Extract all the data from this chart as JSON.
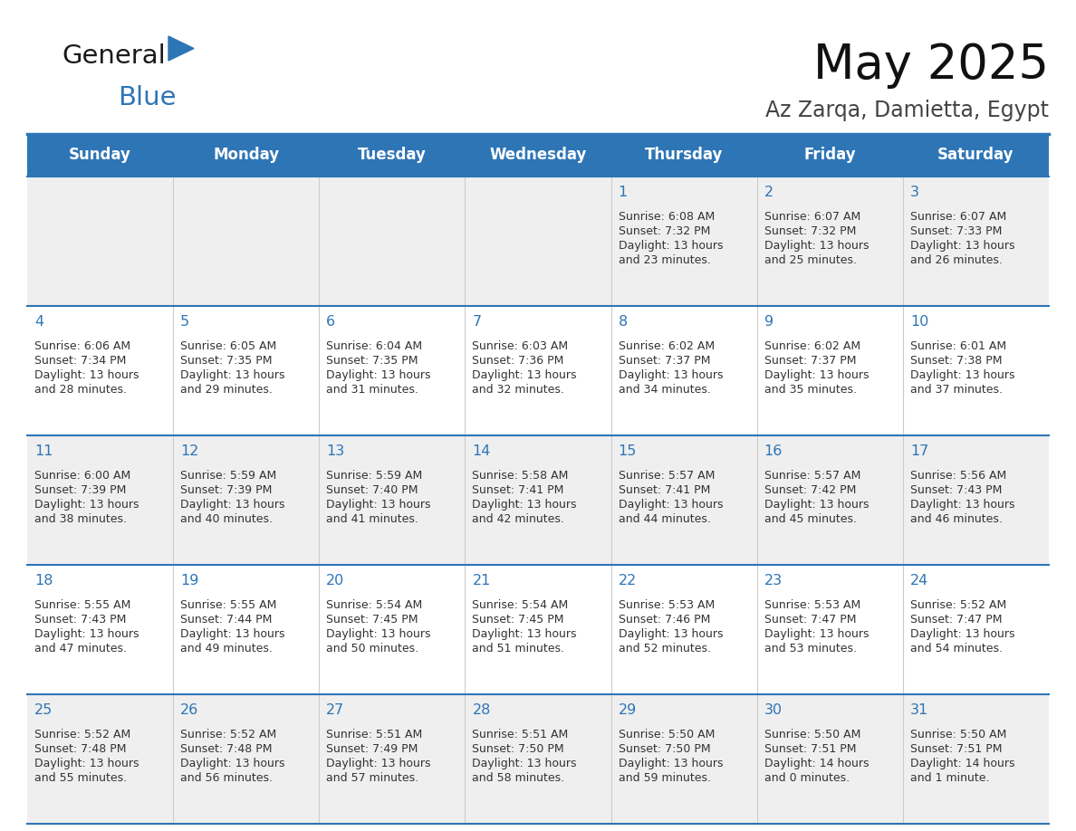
{
  "title": "May 2025",
  "subtitle": "Az Zarqa, Damietta, Egypt",
  "header_bg": "#2E75B6",
  "header_text_color": "#FFFFFF",
  "day_names": [
    "Sunday",
    "Monday",
    "Tuesday",
    "Wednesday",
    "Thursday",
    "Friday",
    "Saturday"
  ],
  "row_bg_even": "#EFEFEF",
  "row_bg_odd": "#FFFFFF",
  "cell_border_color": "#2E75B6",
  "text_color": "#333333",
  "number_color": "#2E75B6",
  "title_color": "#111111",
  "subtitle_color": "#444444",
  "logo_text1_color": "#1A1A1A",
  "logo_text2_color": "#2E75B6",
  "logo_triangle_color": "#2E75B6",
  "calendar_data": [
    [
      {
        "day": 0,
        "sunrise": "",
        "sunset": "",
        "daylight": ""
      },
      {
        "day": 0,
        "sunrise": "",
        "sunset": "",
        "daylight": ""
      },
      {
        "day": 0,
        "sunrise": "",
        "sunset": "",
        "daylight": ""
      },
      {
        "day": 0,
        "sunrise": "",
        "sunset": "",
        "daylight": ""
      },
      {
        "day": 1,
        "sunrise": "6:08 AM",
        "sunset": "7:32 PM",
        "daylight": "13 hours",
        "daylight2": "and 23 minutes."
      },
      {
        "day": 2,
        "sunrise": "6:07 AM",
        "sunset": "7:32 PM",
        "daylight": "13 hours",
        "daylight2": "and 25 minutes."
      },
      {
        "day": 3,
        "sunrise": "6:07 AM",
        "sunset": "7:33 PM",
        "daylight": "13 hours",
        "daylight2": "and 26 minutes."
      }
    ],
    [
      {
        "day": 4,
        "sunrise": "6:06 AM",
        "sunset": "7:34 PM",
        "daylight": "13 hours",
        "daylight2": "and 28 minutes."
      },
      {
        "day": 5,
        "sunrise": "6:05 AM",
        "sunset": "7:35 PM",
        "daylight": "13 hours",
        "daylight2": "and 29 minutes."
      },
      {
        "day": 6,
        "sunrise": "6:04 AM",
        "sunset": "7:35 PM",
        "daylight": "13 hours",
        "daylight2": "and 31 minutes."
      },
      {
        "day": 7,
        "sunrise": "6:03 AM",
        "sunset": "7:36 PM",
        "daylight": "13 hours",
        "daylight2": "and 32 minutes."
      },
      {
        "day": 8,
        "sunrise": "6:02 AM",
        "sunset": "7:37 PM",
        "daylight": "13 hours",
        "daylight2": "and 34 minutes."
      },
      {
        "day": 9,
        "sunrise": "6:02 AM",
        "sunset": "7:37 PM",
        "daylight": "13 hours",
        "daylight2": "and 35 minutes."
      },
      {
        "day": 10,
        "sunrise": "6:01 AM",
        "sunset": "7:38 PM",
        "daylight": "13 hours",
        "daylight2": "and 37 minutes."
      }
    ],
    [
      {
        "day": 11,
        "sunrise": "6:00 AM",
        "sunset": "7:39 PM",
        "daylight": "13 hours",
        "daylight2": "and 38 minutes."
      },
      {
        "day": 12,
        "sunrise": "5:59 AM",
        "sunset": "7:39 PM",
        "daylight": "13 hours",
        "daylight2": "and 40 minutes."
      },
      {
        "day": 13,
        "sunrise": "5:59 AM",
        "sunset": "7:40 PM",
        "daylight": "13 hours",
        "daylight2": "and 41 minutes."
      },
      {
        "day": 14,
        "sunrise": "5:58 AM",
        "sunset": "7:41 PM",
        "daylight": "13 hours",
        "daylight2": "and 42 minutes."
      },
      {
        "day": 15,
        "sunrise": "5:57 AM",
        "sunset": "7:41 PM",
        "daylight": "13 hours",
        "daylight2": "and 44 minutes."
      },
      {
        "day": 16,
        "sunrise": "5:57 AM",
        "sunset": "7:42 PM",
        "daylight": "13 hours",
        "daylight2": "and 45 minutes."
      },
      {
        "day": 17,
        "sunrise": "5:56 AM",
        "sunset": "7:43 PM",
        "daylight": "13 hours",
        "daylight2": "and 46 minutes."
      }
    ],
    [
      {
        "day": 18,
        "sunrise": "5:55 AM",
        "sunset": "7:43 PM",
        "daylight": "13 hours",
        "daylight2": "and 47 minutes."
      },
      {
        "day": 19,
        "sunrise": "5:55 AM",
        "sunset": "7:44 PM",
        "daylight": "13 hours",
        "daylight2": "and 49 minutes."
      },
      {
        "day": 20,
        "sunrise": "5:54 AM",
        "sunset": "7:45 PM",
        "daylight": "13 hours",
        "daylight2": "and 50 minutes."
      },
      {
        "day": 21,
        "sunrise": "5:54 AM",
        "sunset": "7:45 PM",
        "daylight": "13 hours",
        "daylight2": "and 51 minutes."
      },
      {
        "day": 22,
        "sunrise": "5:53 AM",
        "sunset": "7:46 PM",
        "daylight": "13 hours",
        "daylight2": "and 52 minutes."
      },
      {
        "day": 23,
        "sunrise": "5:53 AM",
        "sunset": "7:47 PM",
        "daylight": "13 hours",
        "daylight2": "and 53 minutes."
      },
      {
        "day": 24,
        "sunrise": "5:52 AM",
        "sunset": "7:47 PM",
        "daylight": "13 hours",
        "daylight2": "and 54 minutes."
      }
    ],
    [
      {
        "day": 25,
        "sunrise": "5:52 AM",
        "sunset": "7:48 PM",
        "daylight": "13 hours",
        "daylight2": "and 55 minutes."
      },
      {
        "day": 26,
        "sunrise": "5:52 AM",
        "sunset": "7:48 PM",
        "daylight": "13 hours",
        "daylight2": "and 56 minutes."
      },
      {
        "day": 27,
        "sunrise": "5:51 AM",
        "sunset": "7:49 PM",
        "daylight": "13 hours",
        "daylight2": "and 57 minutes."
      },
      {
        "day": 28,
        "sunrise": "5:51 AM",
        "sunset": "7:50 PM",
        "daylight": "13 hours",
        "daylight2": "and 58 minutes."
      },
      {
        "day": 29,
        "sunrise": "5:50 AM",
        "sunset": "7:50 PM",
        "daylight": "13 hours",
        "daylight2": "and 59 minutes."
      },
      {
        "day": 30,
        "sunrise": "5:50 AM",
        "sunset": "7:51 PM",
        "daylight": "14 hours",
        "daylight2": "and 0 minutes."
      },
      {
        "day": 31,
        "sunrise": "5:50 AM",
        "sunset": "7:51 PM",
        "daylight": "14 hours",
        "daylight2": "and 1 minute."
      }
    ]
  ]
}
